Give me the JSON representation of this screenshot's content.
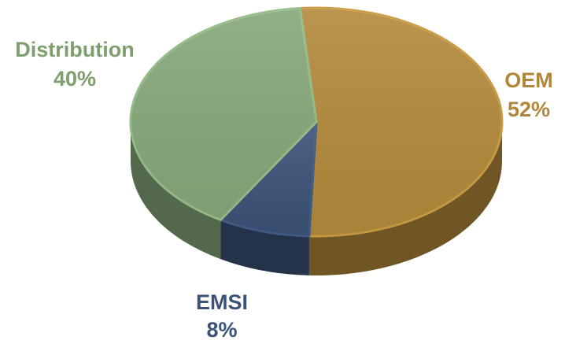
{
  "chart_data": {
    "type": "pie",
    "title": "",
    "three_d": true,
    "legend": "none",
    "slices": [
      {
        "name": "OEM",
        "value": 52,
        "label": "52%",
        "color": "#B48A3C"
      },
      {
        "name": "EMSI",
        "value": 8,
        "label": "8%",
        "color": "#3B5278"
      },
      {
        "name": "Distribution",
        "value": 40,
        "label": "40%",
        "color": "#86A87A"
      }
    ]
  }
}
